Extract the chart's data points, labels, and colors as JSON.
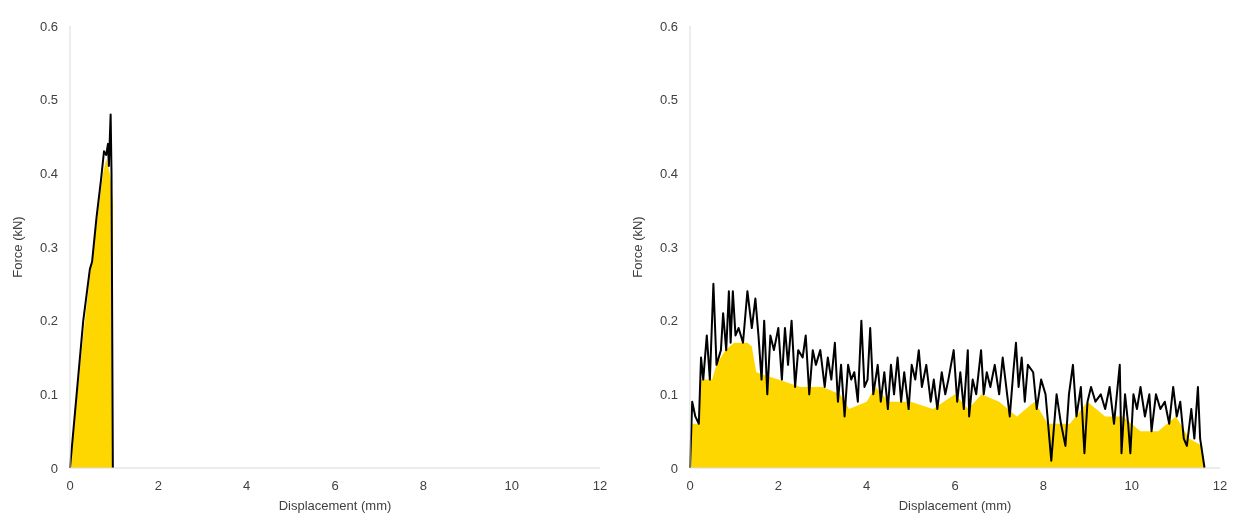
{
  "chart_data": [
    {
      "type": "line",
      "xlabel": "Displacement (mm)",
      "ylabel": "Force (kN)",
      "xlim": [
        0,
        12
      ],
      "xticks": [
        0,
        2,
        4,
        6,
        8,
        10,
        12
      ],
      "ylim": [
        0,
        0.6
      ],
      "yticks": [
        0,
        0.1,
        0.2,
        0.3,
        0.4,
        0.5,
        0.6
      ],
      "grid": false,
      "series": [
        {
          "type": "area",
          "color": "#ffd700",
          "x": [
            0,
            0.15,
            0.3,
            0.45,
            0.6,
            0.75,
            0.82,
            0.9,
            0.94,
            0.97,
            0.97
          ],
          "values": [
            0,
            0.09,
            0.18,
            0.26,
            0.33,
            0.4,
            0.42,
            0.4,
            0.38,
            0.36,
            0
          ]
        },
        {
          "type": "line",
          "color": "#000000",
          "x": [
            0,
            0.15,
            0.3,
            0.45,
            0.5,
            0.6,
            0.7,
            0.77,
            0.82,
            0.86,
            0.88,
            0.92,
            0.94,
            0.97
          ],
          "values": [
            0,
            0.1,
            0.2,
            0.27,
            0.28,
            0.34,
            0.39,
            0.43,
            0.425,
            0.44,
            0.41,
            0.48,
            0.4,
            0
          ]
        }
      ]
    },
    {
      "type": "line",
      "xlabel": "Displacement (mm)",
      "ylabel": "Force (kN)",
      "xlim": [
        0,
        12
      ],
      "xticks": [
        0,
        2,
        4,
        6,
        8,
        10,
        12
      ],
      "ylim": [
        0,
        0.6
      ],
      "yticks": [
        0,
        0.1,
        0.2,
        0.3,
        0.4,
        0.5,
        0.6
      ],
      "grid": false,
      "series": [
        {
          "type": "area",
          "color": "#ffd700",
          "x": [
            0,
            0.05,
            0.2,
            0.25,
            0.5,
            0.6,
            0.8,
            1.0,
            1.3,
            1.4,
            1.5,
            2.0,
            2.5,
            3.0,
            3.4,
            3.6,
            4.0,
            4.2,
            4.5,
            5.0,
            5.5,
            6.0,
            6.3,
            6.6,
            7.0,
            7.4,
            7.8,
            8.1,
            8.3,
            8.6,
            9.0,
            9.4,
            9.8,
            10.2,
            10.6,
            11.0,
            11.3,
            11.6,
            11.65
          ],
          "values": [
            0,
            0.06,
            0.06,
            0.12,
            0.12,
            0.14,
            0.16,
            0.17,
            0.17,
            0.165,
            0.13,
            0.12,
            0.11,
            0.11,
            0.1,
            0.08,
            0.09,
            0.11,
            0.09,
            0.09,
            0.08,
            0.1,
            0.08,
            0.1,
            0.09,
            0.07,
            0.09,
            0.06,
            0.06,
            0.06,
            0.09,
            0.07,
            0.07,
            0.05,
            0.05,
            0.07,
            0.04,
            0.03,
            0
          ]
        },
        {
          "type": "line",
          "color": "#000000",
          "x": [
            0,
            0.05,
            0.12,
            0.2,
            0.25,
            0.3,
            0.38,
            0.45,
            0.53,
            0.6,
            0.7,
            0.75,
            0.82,
            0.88,
            0.92,
            0.97,
            1.03,
            1.1,
            1.2,
            1.3,
            1.4,
            1.48,
            1.55,
            1.62,
            1.68,
            1.75,
            1.82,
            1.9,
            2.0,
            2.08,
            2.15,
            2.22,
            2.3,
            2.38,
            2.45,
            2.55,
            2.62,
            2.7,
            2.78,
            2.85,
            2.95,
            3.05,
            3.12,
            3.2,
            3.28,
            3.35,
            3.42,
            3.5,
            3.58,
            3.65,
            3.72,
            3.8,
            3.88,
            3.95,
            4.02,
            4.08,
            4.15,
            4.25,
            4.32,
            4.4,
            4.48,
            4.55,
            4.62,
            4.7,
            4.78,
            4.85,
            4.95,
            5.02,
            5.1,
            5.18,
            5.25,
            5.35,
            5.45,
            5.52,
            5.6,
            5.7,
            5.78,
            5.85,
            5.97,
            6.05,
            6.12,
            6.2,
            6.29,
            6.32,
            6.4,
            6.48,
            6.59,
            6.65,
            6.72,
            6.8,
            6.9,
            7.0,
            7.08,
            7.16,
            7.24,
            7.32,
            7.38,
            7.44,
            7.51,
            7.58,
            7.65,
            7.77,
            7.85,
            7.95,
            8.05,
            8.18,
            8.3,
            8.4,
            8.5,
            8.58,
            8.67,
            8.75,
            8.85,
            8.93,
            9.0,
            9.08,
            9.18,
            9.3,
            9.4,
            9.5,
            9.6,
            9.73,
            9.77,
            9.85,
            9.92,
            9.97,
            10.04,
            10.12,
            10.2,
            10.3,
            10.4,
            10.45,
            10.55,
            10.65,
            10.75,
            10.85,
            10.94,
            11.02,
            11.1,
            11.18,
            11.25,
            11.35,
            11.42,
            11.5,
            11.55,
            11.65
          ],
          "values": [
            0,
            0.09,
            0.07,
            0.06,
            0.15,
            0.12,
            0.18,
            0.12,
            0.25,
            0.14,
            0.16,
            0.21,
            0.16,
            0.24,
            0.17,
            0.24,
            0.18,
            0.19,
            0.17,
            0.24,
            0.19,
            0.23,
            0.18,
            0.12,
            0.2,
            0.1,
            0.18,
            0.16,
            0.19,
            0.12,
            0.19,
            0.14,
            0.2,
            0.11,
            0.16,
            0.15,
            0.18,
            0.1,
            0.16,
            0.14,
            0.16,
            0.11,
            0.15,
            0.12,
            0.17,
            0.09,
            0.14,
            0.07,
            0.14,
            0.12,
            0.13,
            0.09,
            0.2,
            0.11,
            0.12,
            0.19,
            0.1,
            0.14,
            0.09,
            0.13,
            0.08,
            0.14,
            0.1,
            0.15,
            0.09,
            0.13,
            0.08,
            0.14,
            0.12,
            0.16,
            0.11,
            0.14,
            0.09,
            0.12,
            0.08,
            0.13,
            0.1,
            0.12,
            0.16,
            0.09,
            0.13,
            0.08,
            0.16,
            0.07,
            0.12,
            0.1,
            0.16,
            0.1,
            0.13,
            0.11,
            0.14,
            0.1,
            0.15,
            0.11,
            0.07,
            0.13,
            0.17,
            0.11,
            0.15,
            0.09,
            0.14,
            0.13,
            0.08,
            0.12,
            0.1,
            0.01,
            0.1,
            0.06,
            0.03,
            0.1,
            0.14,
            0.07,
            0.11,
            0.02,
            0.09,
            0.11,
            0.09,
            0.1,
            0.08,
            0.11,
            0.06,
            0.14,
            0.02,
            0.1,
            0.06,
            0.02,
            0.1,
            0.08,
            0.11,
            0.07,
            0.1,
            0.05,
            0.1,
            0.08,
            0.09,
            0.06,
            0.11,
            0.07,
            0.09,
            0.04,
            0.03,
            0.08,
            0.04,
            0.11,
            0.04,
            0
          ]
        }
      ]
    }
  ]
}
